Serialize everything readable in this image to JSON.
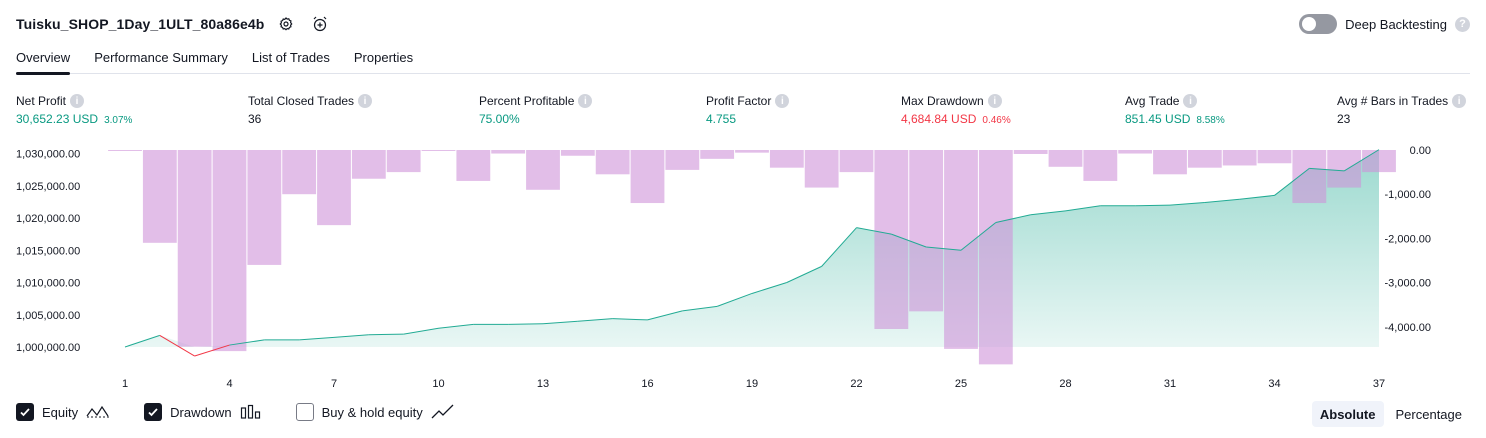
{
  "header": {
    "title": "Tuisku_SHOP_1Day_1ULT_80a86e4b",
    "settings_icon": "gear-icon",
    "alert_icon": "alarm-clock-plus-icon"
  },
  "deep_backtesting": {
    "label": "Deep Backtesting",
    "enabled": false,
    "help": "?"
  },
  "tabs": [
    {
      "label": "Overview",
      "active": true
    },
    {
      "label": "Performance Summary",
      "active": false
    },
    {
      "label": "List of Trades",
      "active": false
    },
    {
      "label": "Properties",
      "active": false
    }
  ],
  "metrics": {
    "net_profit": {
      "label": "Net Profit",
      "value": "30,652.23 USD",
      "pct": "3.07%"
    },
    "total_closed_trades": {
      "label": "Total Closed Trades",
      "value": "36"
    },
    "percent_profitable": {
      "label": "Percent Profitable",
      "value": "75.00%"
    },
    "profit_factor": {
      "label": "Profit Factor",
      "value": "4.755"
    },
    "max_drawdown": {
      "label": "Max Drawdown",
      "value": "4,684.84 USD",
      "pct": "0.46%"
    },
    "avg_trade": {
      "label": "Avg Trade",
      "value": "851.45 USD",
      "pct": "8.58%"
    },
    "avg_bars": {
      "label": "Avg # Bars in Trades",
      "value": "23"
    }
  },
  "chart_data": {
    "type": "area",
    "x_ticks": [
      1,
      4,
      7,
      10,
      13,
      16,
      19,
      22,
      25,
      28,
      31,
      34,
      37
    ],
    "left_axis": {
      "ticks": [
        "1,030,000.00",
        "1,025,000.00",
        "1,020,000.00",
        "1,015,000.00",
        "1,010,000.00",
        "1,005,000.00",
        "1,000,000.00"
      ],
      "range": [
        998000,
        1030000
      ]
    },
    "right_axis": {
      "ticks": [
        "0.00",
        "-1,000.00",
        "-2,000.00",
        "-3,000.00",
        "-4,000.00"
      ],
      "range": [
        -4900,
        0
      ]
    },
    "series": [
      {
        "name": "Equity",
        "color": "#22ab94",
        "negative_color": "#f23645",
        "x": [
          1,
          2,
          3,
          4,
          5,
          6,
          7,
          8,
          9,
          10,
          11,
          12,
          13,
          14,
          15,
          16,
          17,
          18,
          19,
          20,
          21,
          22,
          23,
          24,
          25,
          26,
          27,
          28,
          29,
          30,
          31,
          32,
          33,
          34,
          35,
          36,
          37
        ],
        "values": [
          1000000,
          1001800,
          998600,
          1000300,
          1001100,
          1001100,
          1001500,
          1001900,
          1002000,
          1002900,
          1003500,
          1003500,
          1003600,
          1004000,
          1004400,
          1004200,
          1005600,
          1006300,
          1008300,
          1010000,
          1012500,
          1018500,
          1017500,
          1015500,
          1015000,
          1019300,
          1020500,
          1021100,
          1021900,
          1021900,
          1022000,
          1022400,
          1022900,
          1023500,
          1027700,
          1027300,
          1030600
        ]
      },
      {
        "name": "Drawdown",
        "color": "#ce93d8",
        "x": [
          1,
          2,
          3,
          4,
          5,
          6,
          7,
          8,
          9,
          10,
          11,
          12,
          13,
          14,
          15,
          16,
          17,
          18,
          19,
          20,
          21,
          22,
          23,
          24,
          25,
          26,
          27,
          28,
          29,
          30,
          31,
          32,
          33,
          34,
          35,
          36,
          37
        ],
        "values": [
          -10,
          -2100,
          -4450,
          -4550,
          -2600,
          -1000,
          -1700,
          -650,
          -500,
          -10,
          -700,
          -80,
          -900,
          -130,
          -550,
          -1200,
          -450,
          -200,
          -60,
          -400,
          -850,
          -500,
          -4050,
          -3650,
          -4500,
          -4850,
          -90,
          -380,
          -700,
          -80,
          -550,
          -400,
          -350,
          -300,
          -1200,
          -850,
          -500
        ]
      }
    ],
    "xlabel": "",
    "ylabel": ""
  },
  "legend": [
    {
      "label": "Equity",
      "checked": true,
      "icon": "equity-line-icon"
    },
    {
      "label": "Drawdown",
      "checked": true,
      "icon": "drawdown-bars-icon"
    },
    {
      "label": "Buy & hold equity",
      "checked": false,
      "icon": "buy-hold-line-icon"
    }
  ],
  "scale_mode": {
    "absolute": "Absolute",
    "percentage": "Percentage",
    "selected": "Absolute"
  }
}
